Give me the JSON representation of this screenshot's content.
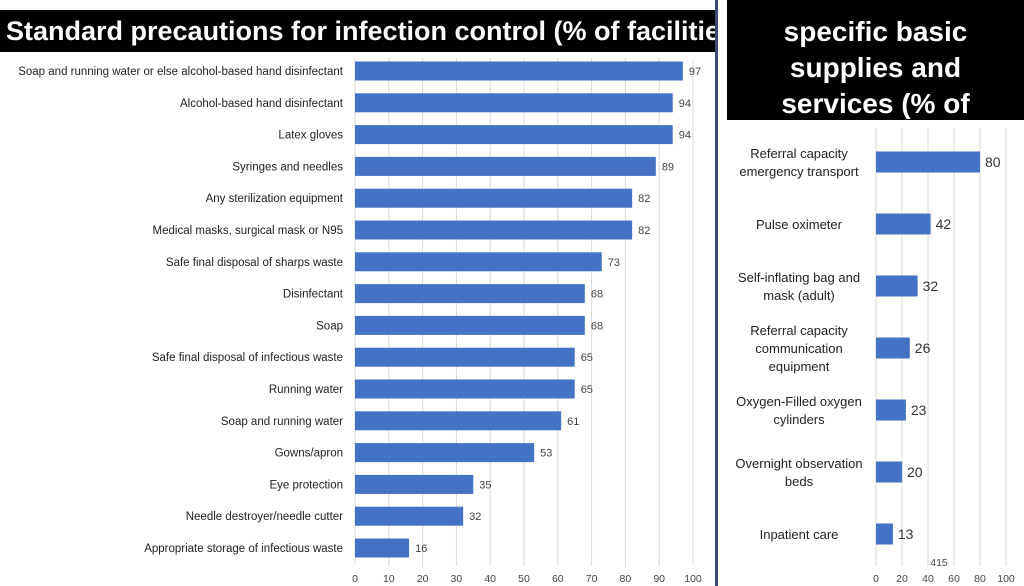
{
  "left_chart": {
    "title": "Standard precautions for infection control (% of facilities)"
  },
  "right_chart": {
    "title_lines": [
      "specific basic",
      "supplies and",
      "services (% of"
    ]
  },
  "page_number": "415",
  "colors": {
    "bar": "#4472c4",
    "title_bg": "#000000",
    "title_text": "#ffffff"
  },
  "chart_data": [
    {
      "type": "bar",
      "orientation": "horizontal",
      "title": "Standard precautions for infection control (% of facilities)",
      "categories": [
        "Soap and running water or else alcohol-based hand disinfectant",
        "Alcohol-based hand disinfectant",
        "Latex gloves",
        "Syringes and needles",
        "Any sterilization equipment",
        "Medical masks, surgical mask or N95",
        "Safe final disposal of sharps waste",
        "Disinfectant",
        "Soap",
        "Safe final disposal of infectious waste",
        "Running water",
        "Soap and running water",
        "Gowns/apron",
        "Eye protection",
        "Needle destroyer/needle cutter",
        "Appropriate storage of infectious waste"
      ],
      "values": [
        97,
        94,
        94,
        89,
        82,
        82,
        73,
        68,
        68,
        65,
        65,
        61,
        53,
        35,
        32,
        16
      ],
      "xlim": [
        0,
        100
      ],
      "xticks": [
        0,
        10,
        20,
        30,
        40,
        50,
        60,
        70,
        80,
        90,
        100
      ],
      "grid": true,
      "data_labels": true
    },
    {
      "type": "bar",
      "orientation": "horizontal",
      "title": "specific basic supplies and services (% of",
      "categories": [
        [
          "Referral capacity",
          "emergency transport"
        ],
        [
          "Pulse oximeter"
        ],
        [
          "Self-inflating bag and",
          "mask (adult)"
        ],
        [
          "Referral capacity",
          "communication",
          "equipment"
        ],
        [
          "Oxygen-Filled oxygen",
          "cylinders"
        ],
        [
          "Overnight observation",
          "beds"
        ],
        [
          "Inpatient care"
        ]
      ],
      "values": [
        80,
        42,
        32,
        26,
        23,
        20,
        13
      ],
      "xlim": [
        0,
        100
      ],
      "xticks": [
        0,
        20,
        40,
        60,
        80,
        100
      ],
      "grid": true,
      "data_labels": true
    }
  ]
}
